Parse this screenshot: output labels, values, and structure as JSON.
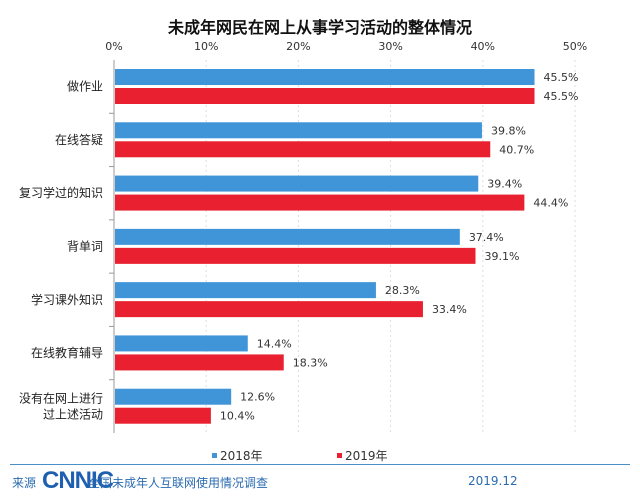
{
  "chart_data": {
    "type": "bar",
    "orientation": "horizontal",
    "title": "未成年网民在网上从事学习活动的整体情况",
    "categories": [
      "做作业",
      "在线答疑",
      "复习学过的知识",
      "背单词",
      "学习课外知识",
      "在线教育辅导",
      "没有在网上进行过上述活动"
    ],
    "category_lines": [
      [
        "做作业"
      ],
      [
        "在线答疑"
      ],
      [
        "复习学过的知识"
      ],
      [
        "背单词"
      ],
      [
        "学习课外知识"
      ],
      [
        "在线教育辅导"
      ],
      [
        "没有在网上进行",
        "过上述活动"
      ]
    ],
    "series": [
      {
        "name": "2018年",
        "color": "#3f95d8",
        "values": [
          45.5,
          39.8,
          39.4,
          37.4,
          28.3,
          14.4,
          12.6
        ],
        "labels": [
          "45.5%",
          "39.8%",
          "39.4%",
          "37.4%",
          "28.3%",
          "14.4%",
          "12.6%"
        ]
      },
      {
        "name": "2019年",
        "color": "#e8202f",
        "values": [
          45.5,
          40.7,
          44.4,
          39.1,
          33.4,
          18.3,
          10.4
        ],
        "labels": [
          "45.5%",
          "40.7%",
          "44.4%",
          "39.1%",
          "33.4%",
          "18.3%",
          "10.4%"
        ]
      }
    ],
    "xlim": [
      0,
      50
    ],
    "xticks": [
      "0%",
      "10%",
      "20%",
      "30%",
      "40%",
      "50%"
    ],
    "axis_position": "top",
    "grid": true,
    "legend": "bottom"
  },
  "footer": {
    "source_label": "来源",
    "logo": "CNNIC",
    "survey": "全国未成年人互联网使用情况调查",
    "date": "2019.12"
  }
}
